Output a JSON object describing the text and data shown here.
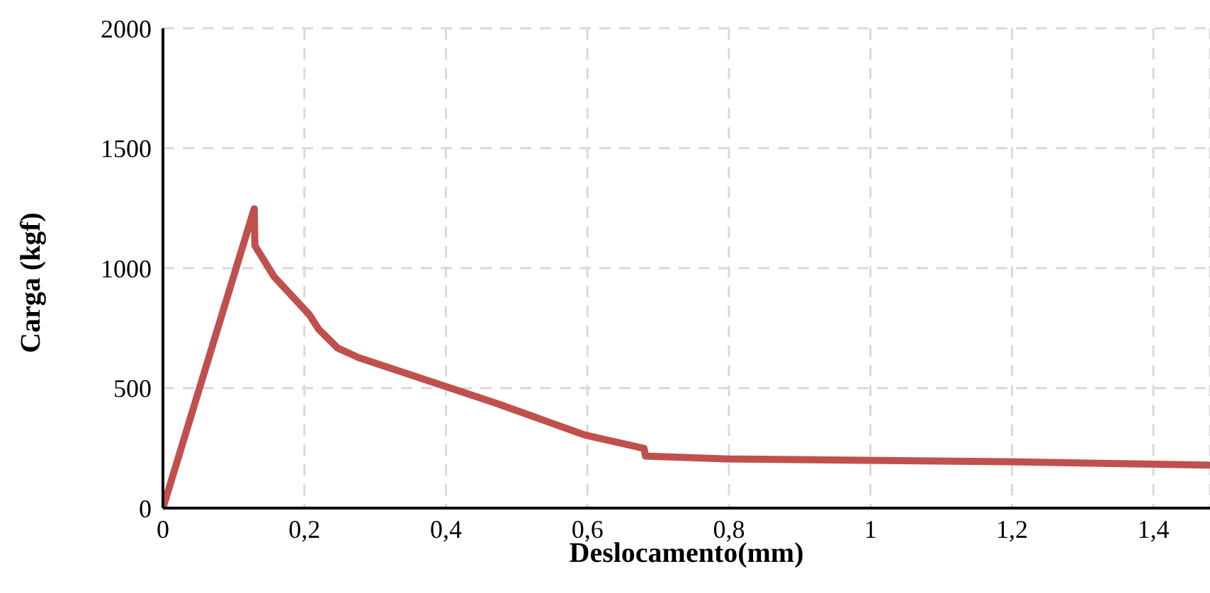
{
  "chart_data": {
    "type": "line",
    "xlabel": "Deslocamento(mm)",
    "ylabel": "Carga (kgf)",
    "xlim": [
      0,
      1.48
    ],
    "xticks": [
      {
        "value": 0,
        "label": "0"
      },
      {
        "value": 0.2,
        "label": "0,2"
      },
      {
        "value": 0.4,
        "label": "0,4"
      },
      {
        "value": 0.6,
        "label": "0,6"
      },
      {
        "value": 0.8,
        "label": "0,8"
      },
      {
        "value": 1,
        "label": "1"
      },
      {
        "value": 1.2,
        "label": "1,2"
      },
      {
        "value": 1.4,
        "label": "1,4"
      }
    ],
    "ylim": [
      0,
      2000
    ],
    "yticks": [
      0,
      500,
      1000,
      1500,
      2000
    ],
    "grid": true,
    "marker": "none",
    "line_style": "solid",
    "series": [
      {
        "color": "#c0504d",
        "x": [
          0,
          0.129,
          0.13,
          0.157,
          0.207,
          0.22,
          0.247,
          0.277,
          0.47,
          0.597,
          0.68,
          0.682,
          0.797,
          1.195,
          1.478
        ],
        "values": [
          0,
          1248,
          1094,
          965,
          806,
          746,
          667,
          627,
          438,
          304,
          249,
          217,
          205,
          193,
          179
        ]
      }
    ]
  }
}
